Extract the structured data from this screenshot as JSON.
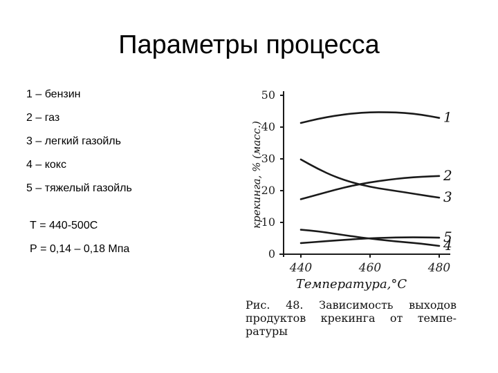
{
  "title": "Параметры процесса",
  "legend": [
    "1 – бензин",
    "2 – газ",
    "3 – легкий газойль",
    "4 – кокс",
    "5 – тяжелый газойль"
  ],
  "params": {
    "temperature": "Т = 440-500С",
    "pressure": "Р = 0,14 – 0,18 Мпа"
  },
  "caption": "Рис. 48. Зависимость выходов продуктов крекинга от температуры",
  "caption_lines": [
    "Рис. 48. Зависимость выходов",
    "продуктов крекинга от темпе-",
    "ратуры"
  ],
  "chart_data": {
    "type": "line",
    "xlabel": "Температура,°С",
    "ylabel": "крекинга, % (масс.)",
    "x_ticks": [
      440,
      460,
      480
    ],
    "y_ticks": [
      0,
      10,
      20,
      30,
      40,
      50
    ],
    "xlim": [
      435,
      482
    ],
    "ylim": [
      0,
      50
    ],
    "grid": false,
    "colors": {
      "line": "#1a1a1a",
      "text": "#000000"
    },
    "series": [
      {
        "name": "1",
        "x": [
          440,
          445,
          450,
          455,
          460,
          465,
          470,
          475,
          480
        ],
        "y": [
          41.3,
          42.6,
          43.6,
          44.3,
          44.7,
          44.7,
          44.5,
          43.9,
          42.9
        ]
      },
      {
        "name": "2",
        "x": [
          440,
          445,
          450,
          455,
          460,
          465,
          470,
          475,
          480
        ],
        "y": [
          17.3,
          18.8,
          20.3,
          21.6,
          22.6,
          23.4,
          24.0,
          24.4,
          24.6
        ]
      },
      {
        "name": "3",
        "x": [
          440,
          445,
          450,
          455,
          460,
          465,
          470,
          475,
          480
        ],
        "y": [
          29.8,
          26.8,
          24.3,
          22.5,
          21.2,
          20.3,
          19.5,
          18.6,
          17.8
        ]
      },
      {
        "name": "4",
        "x": [
          440,
          445,
          450,
          455,
          460,
          465,
          470,
          475,
          480
        ],
        "y": [
          7.7,
          7.2,
          6.4,
          5.6,
          4.9,
          4.3,
          3.8,
          3.3,
          2.6
        ]
      },
      {
        "name": "5",
        "x": [
          440,
          445,
          450,
          455,
          460,
          465,
          470,
          475,
          480
        ],
        "y": [
          3.5,
          3.9,
          4.3,
          4.7,
          5.0,
          5.2,
          5.3,
          5.3,
          5.2
        ]
      }
    ]
  }
}
